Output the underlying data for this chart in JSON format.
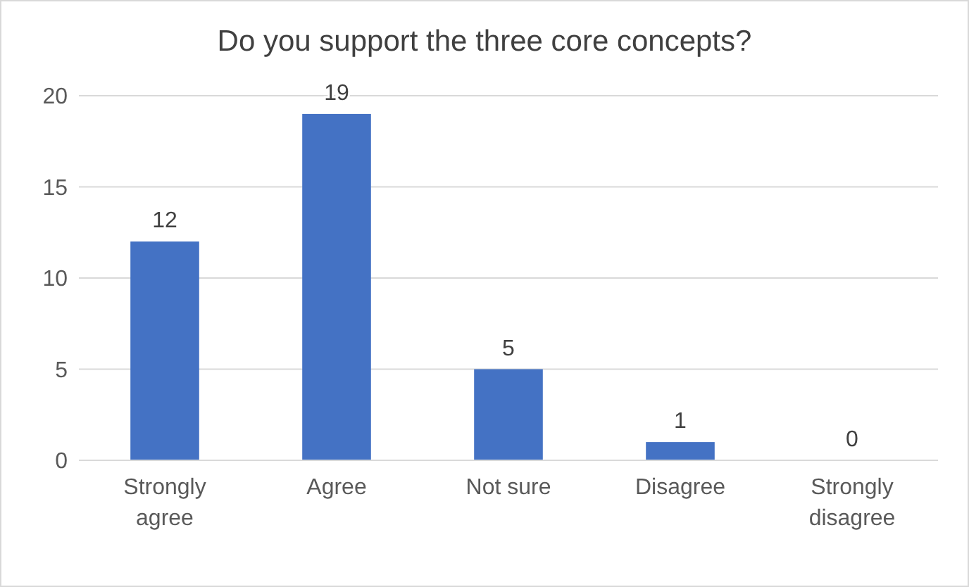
{
  "chart_data": {
    "type": "bar",
    "title": "Do you support the three core concepts?",
    "categories": [
      "Strongly agree",
      "Agree",
      "Not sure",
      "Disagree",
      "Strongly disagree"
    ],
    "values": [
      12,
      19,
      5,
      1,
      0
    ],
    "color": "#4472c4",
    "ylim": [
      0,
      20
    ],
    "yticks": [
      0,
      5,
      10,
      15,
      20
    ],
    "grid": "y",
    "data_labels": true
  }
}
